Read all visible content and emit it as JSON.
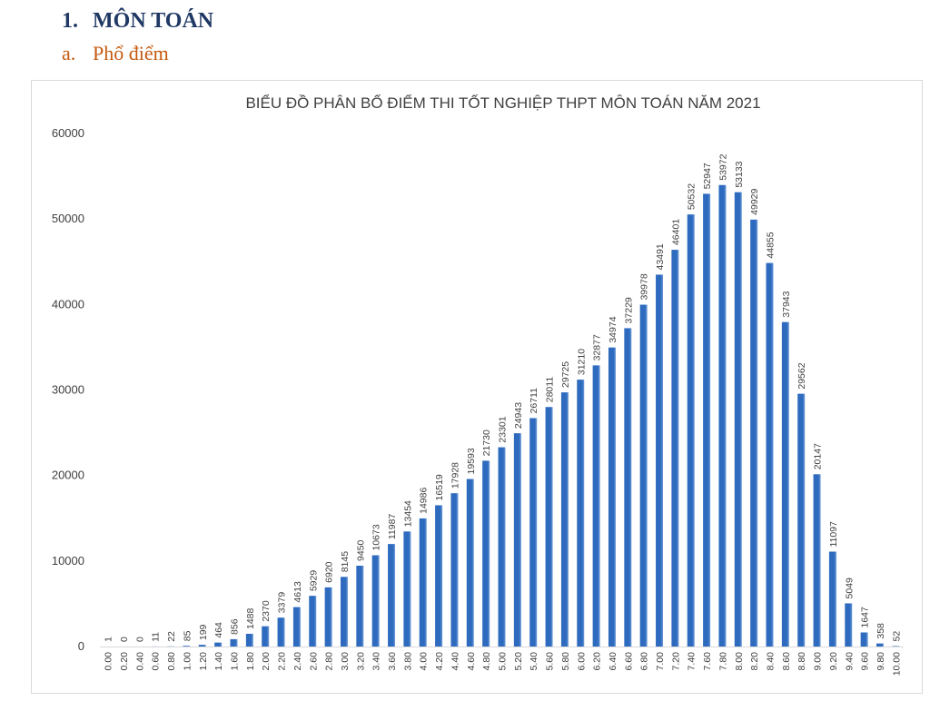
{
  "document": {
    "section_number": "1.",
    "section_title": "MÔN TOÁN",
    "subsection_letter": "a.",
    "subsection_title": "Phổ điểm"
  },
  "chart_data": {
    "type": "bar",
    "title": "BIỂU ĐỒ PHÂN BỐ ĐIỂM THI TỐT NGHIỆP THPT MÔN TOÁN NĂM 2021",
    "xlabel": "",
    "ylabel": "",
    "categories": [
      "0.00",
      "0.20",
      "0.40",
      "0.60",
      "0.80",
      "1.00",
      "1.20",
      "1.40",
      "1.60",
      "1.80",
      "2.00",
      "2.20",
      "2.40",
      "2.60",
      "2.80",
      "3.00",
      "3.20",
      "3.40",
      "3.60",
      "3.80",
      "4.00",
      "4.20",
      "4.40",
      "4.60",
      "4.80",
      "5.00",
      "5.20",
      "5.40",
      "5.60",
      "5.80",
      "6.00",
      "6.20",
      "6.40",
      "6.60",
      "6.80",
      "7.00",
      "7.20",
      "7.40",
      "7.60",
      "7.80",
      "8.00",
      "8.20",
      "8.40",
      "8.60",
      "8.80",
      "9.00",
      "9.20",
      "9.40",
      "9.60",
      "9.80",
      "10.00"
    ],
    "values": [
      1,
      0,
      0,
      11,
      22,
      85,
      199,
      464,
      856,
      1488,
      2370,
      3379,
      4613,
      5929,
      6920,
      8145,
      9450,
      10673,
      11987,
      13454,
      14986,
      16519,
      17928,
      19593,
      21730,
      23301,
      24943,
      26711,
      28011,
      29725,
      31210,
      32877,
      34974,
      37229,
      39978,
      43491,
      46401,
      50532,
      52947,
      53972,
      53133,
      49929,
      44855,
      37943,
      29562,
      20147,
      11097,
      5049,
      1647,
      358,
      52
    ],
    "ylim": [
      0,
      60000
    ],
    "yticks": [
      "0",
      "10000",
      "20000",
      "30000",
      "40000",
      "50000",
      "60000"
    ],
    "grid": false,
    "legend": "none",
    "bar_color": "#2e6bbf",
    "bar_shade_color": "#6f9bd8"
  }
}
